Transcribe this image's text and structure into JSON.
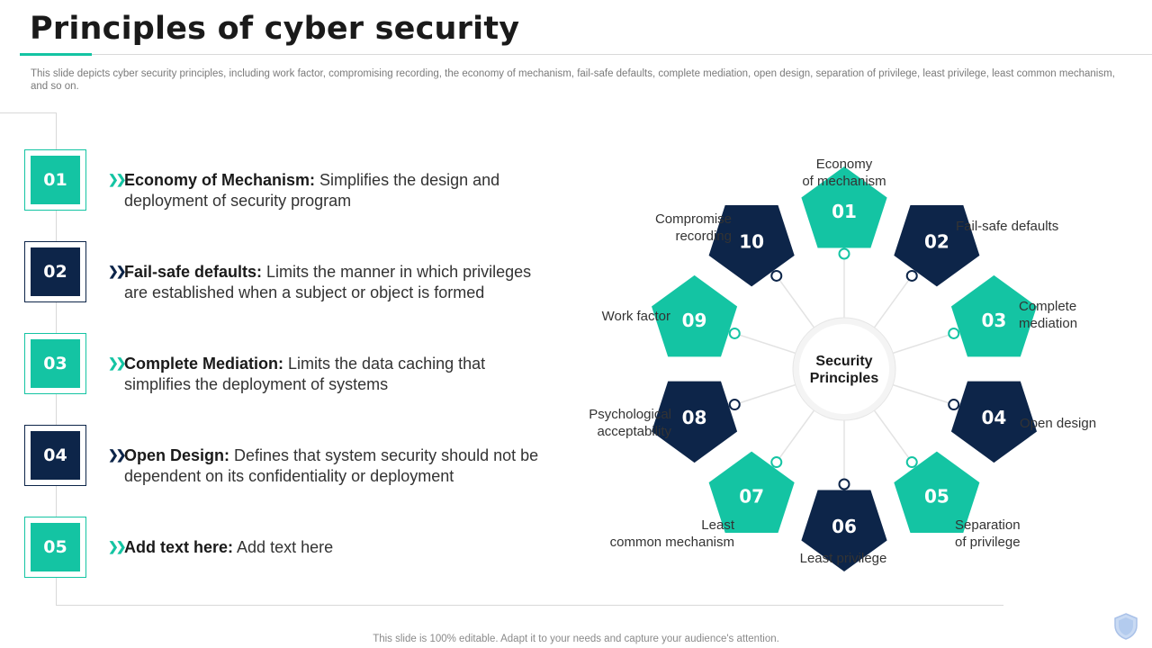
{
  "title": "Principles of cyber security",
  "subtitle": "This slide depicts cyber security principles, including work factor, compromising recording, the economy of mechanism, fail-safe defaults, complete mediation, open design, separation of privilege, least privilege, least common mechanism, and so on.",
  "colors": {
    "teal": "#14c4a3",
    "navy": "#0d2549"
  },
  "items": [
    {
      "num": "01",
      "color": "teal",
      "head": "Economy of Mechanism:",
      "text": " Simplifies the design and deployment of  security program"
    },
    {
      "num": "02",
      "color": "navy",
      "head": "Fail-safe defaults:",
      "text": " Limits the manner in which privileges are established when a subject or object is formed"
    },
    {
      "num": "03",
      "color": "teal",
      "head": "Complete Mediation:",
      "text": " Limits the data caching that simplifies the deployment of systems"
    },
    {
      "num": "04",
      "color": "navy",
      "head": "Open Design:",
      "text": " Defines that system security should not be dependent on its confidentiality or deployment"
    },
    {
      "num": "05",
      "color": "teal",
      "head": "Add text here:",
      "text": " Add text here"
    }
  ],
  "center": {
    "line1": "Security",
    "line2": "Principles"
  },
  "principles": [
    {
      "num": "01",
      "color": "teal",
      "label": [
        "Economy",
        "of mechanism"
      ]
    },
    {
      "num": "02",
      "color": "navy",
      "label": [
        "Fail-safe defaults"
      ]
    },
    {
      "num": "03",
      "color": "teal",
      "label": [
        "Complete",
        "mediation"
      ]
    },
    {
      "num": "04",
      "color": "navy",
      "label": [
        "Open design"
      ]
    },
    {
      "num": "05",
      "color": "teal",
      "label": [
        "Separation",
        "of privilege"
      ]
    },
    {
      "num": "06",
      "color": "navy",
      "label": [
        "Least privilege"
      ]
    },
    {
      "num": "07",
      "color": "teal",
      "label": [
        "Least",
        "common mechanism"
      ]
    },
    {
      "num": "08",
      "color": "navy",
      "label": [
        "Psychological",
        "acceptability"
      ]
    },
    {
      "num": "09",
      "color": "teal",
      "label": [
        "Work factor"
      ]
    },
    {
      "num": "10",
      "color": "navy",
      "label": [
        "Compromise",
        "recording"
      ]
    }
  ],
  "footer": "This slide is 100% editable. Adapt it to your needs and capture your audience's attention.",
  "icons": {
    "arrow": "double-chevron-right-icon",
    "corner": "shield-icon"
  }
}
